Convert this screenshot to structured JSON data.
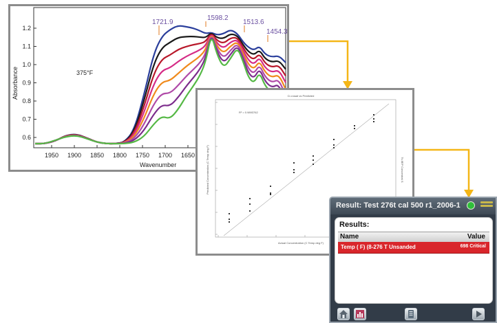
{
  "spectrum": {
    "temperature_label": "375°F",
    "xlabel": "Wavenumber",
    "ylabel": "Absorbance",
    "x_ticks": [
      "1950",
      "1900",
      "1850",
      "1800",
      "1750",
      "1700",
      "1650"
    ],
    "y_ticks": [
      "1.2",
      "1.1",
      "1.0",
      "0.9",
      "0.8",
      "0.7",
      "0.6"
    ],
    "peak_labels": [
      "1721.9",
      "1598.2",
      "1513.6",
      "1454.3"
    ],
    "series_colors": [
      "#2b3f9c",
      "#1a1a1a",
      "#b8182a",
      "#d52c86",
      "#f08a1c",
      "#b04aa8",
      "#7c2c8c",
      "#55b845"
    ]
  },
  "calibration_plot": {
    "title": "Cr-rosad vs Predicted",
    "stat": "R² = 0.9893762",
    "xlabel": "Actual Concentration (C Temp deg F)",
    "ylabel": "Predicted Concentration (C Temp deg F)",
    "side_label": "Ts 8EP Concentrat S"
  },
  "device": {
    "title": "Result: Test 276t cal 500 r1_2006-1",
    "results_heading": "Results:",
    "column_name": "Name",
    "column_value": "Value",
    "row": {
      "name": "Temp ( F) (8-276 T Unsanded",
      "value": "698 Critical"
    }
  },
  "colors": {
    "accent_yellow": "#f4b617",
    "alarm_red": "#d9262b",
    "status_green": "#2fbf3a"
  }
}
